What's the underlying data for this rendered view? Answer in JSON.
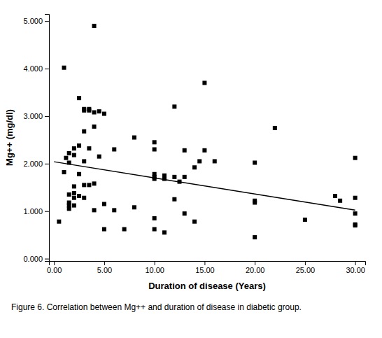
{
  "chart_data": {
    "type": "scatter",
    "title": "Figure 6. Correlation between Mg++ and duration of disease in diabetic group.",
    "xlabel": "Duration of disease (Years)",
    "ylabel": "Mg++ (mg/dl)",
    "xlim": [
      -0.5,
      31.0
    ],
    "ylim": [
      -0.05,
      5.15
    ],
    "xticks": [
      {
        "value": 0.0,
        "label": "0.00"
      },
      {
        "value": 5.0,
        "label": "5.00"
      },
      {
        "value": 10.0,
        "label": "10.00"
      },
      {
        "value": 15.0,
        "label": "15.00"
      },
      {
        "value": 20.0,
        "label": "20.00"
      },
      {
        "value": 25.0,
        "label": "25.00"
      },
      {
        "value": 30.0,
        "label": "30.00"
      }
    ],
    "yticks": [
      {
        "value": 0.0,
        "label": "0.000"
      },
      {
        "value": 1.0,
        "label": "1.000"
      },
      {
        "value": 2.0,
        "label": "2.000"
      },
      {
        "value": 3.0,
        "label": "3.000"
      },
      {
        "value": 4.0,
        "label": "4.000"
      },
      {
        "value": 5.0,
        "label": "5.000"
      }
    ],
    "grid": false,
    "series": [
      {
        "type": "scatter",
        "marker": "square",
        "color": "#000000",
        "x": [
          0.5,
          1.0,
          1.0,
          1.2,
          1.5,
          1.5,
          1.5,
          1.5,
          1.5,
          1.5,
          2.0,
          2.0,
          2.0,
          2.0,
          2.0,
          2.0,
          2.5,
          2.5,
          2.5,
          2.5,
          3.0,
          3.0,
          3.0,
          3.0,
          3.0,
          3.0,
          3.5,
          3.5,
          3.5,
          3.5,
          4.0,
          4.0,
          4.0,
          4.0,
          4.0,
          4.5,
          4.5,
          5.0,
          5.0,
          5.0,
          6.0,
          6.0,
          7.0,
          8.0,
          8.0,
          10.0,
          10.0,
          10.0,
          10.0,
          10.0,
          10.0,
          10.0,
          11.0,
          11.0,
          11.0,
          12.0,
          12.0,
          12.0,
          12.5,
          13.0,
          13.0,
          13.0,
          14.0,
          14.0,
          14.5,
          15.0,
          15.0,
          16.0,
          20.0,
          20.0,
          20.0,
          20.0,
          22.0,
          25.0,
          28.0,
          28.5,
          30.0,
          30.0,
          30.0,
          30.0,
          30.0
        ],
        "values": [
          0.78,
          4.02,
          1.82,
          2.12,
          2.22,
          2.02,
          1.35,
          1.18,
          1.12,
          1.05,
          2.32,
          2.18,
          1.52,
          1.38,
          1.28,
          1.12,
          3.38,
          2.38,
          1.78,
          1.32,
          3.15,
          3.12,
          2.68,
          2.05,
          1.55,
          1.28,
          3.15,
          3.12,
          2.32,
          1.55,
          4.9,
          3.08,
          2.78,
          1.58,
          1.02,
          3.1,
          2.15,
          3.05,
          1.15,
          0.62,
          2.3,
          1.02,
          0.62,
          2.55,
          1.08,
          2.45,
          2.3,
          1.78,
          1.72,
          1.68,
          0.85,
          0.62,
          1.75,
          1.68,
          0.55,
          3.2,
          1.72,
          1.25,
          1.62,
          2.28,
          1.72,
          0.95,
          1.92,
          0.78,
          2.05,
          3.7,
          2.28,
          2.05,
          2.02,
          1.22,
          1.18,
          0.45,
          2.75,
          0.82,
          1.32,
          1.22,
          2.12,
          1.28,
          0.95,
          0.72,
          0.7
        ]
      },
      {
        "type": "line",
        "line_style": "solid",
        "color": "#000000",
        "x": [
          0.0,
          30.0
        ],
        "values": [
          2.04,
          1.02
        ]
      }
    ]
  }
}
